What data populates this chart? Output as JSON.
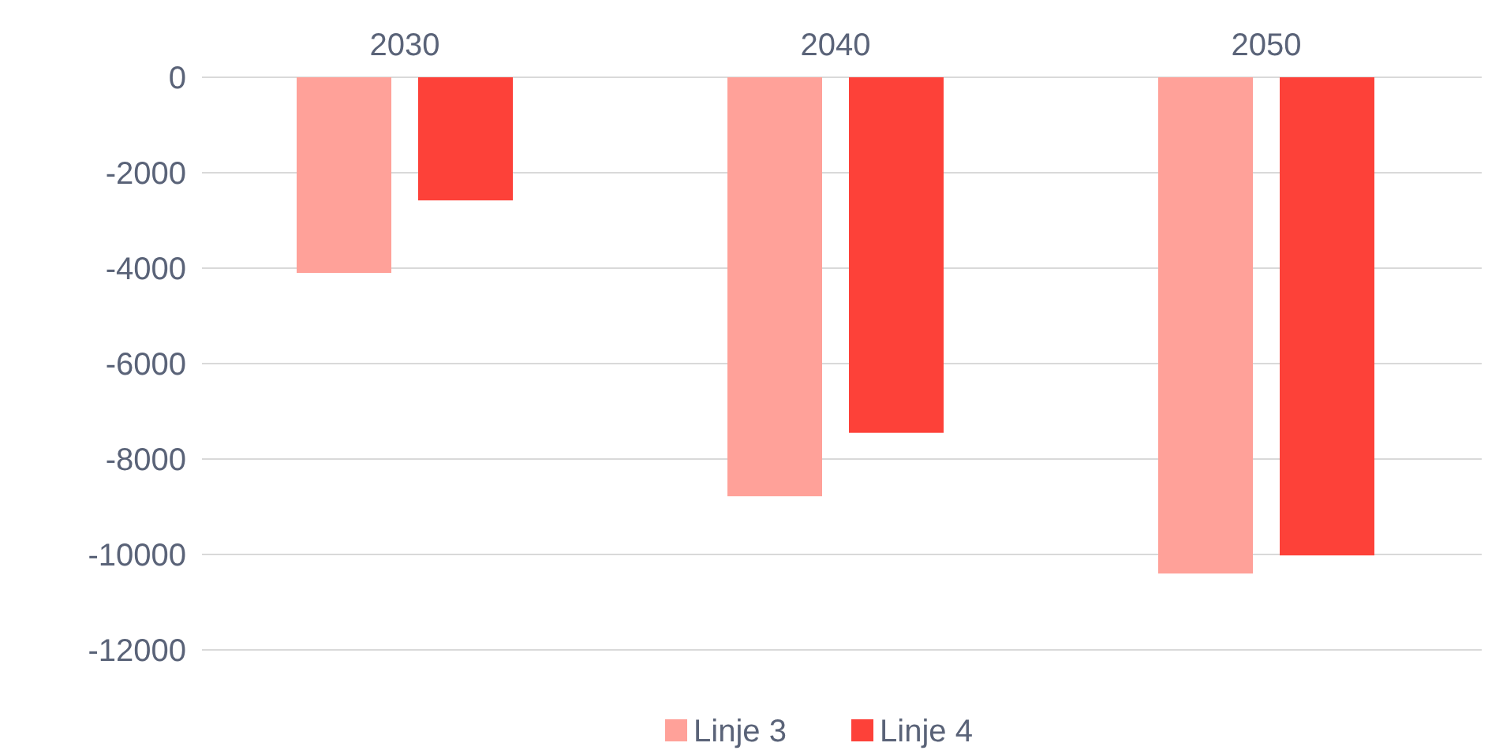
{
  "chart_data": {
    "type": "bar",
    "categories": [
      "2030",
      "2040",
      "2050"
    ],
    "series": [
      {
        "name": "Linje 3",
        "color": "#ffa199",
        "values": [
          -4100,
          -8780,
          -10400
        ]
      },
      {
        "name": "Linje 4",
        "color": "#fd4139",
        "values": [
          -2580,
          -7450,
          -10020
        ]
      }
    ],
    "ylim": [
      -12000,
      0
    ],
    "yticks": [
      0,
      -2000,
      -4000,
      -6000,
      -8000,
      -10000,
      -12000
    ],
    "grid": "y",
    "legend": "bottom"
  }
}
